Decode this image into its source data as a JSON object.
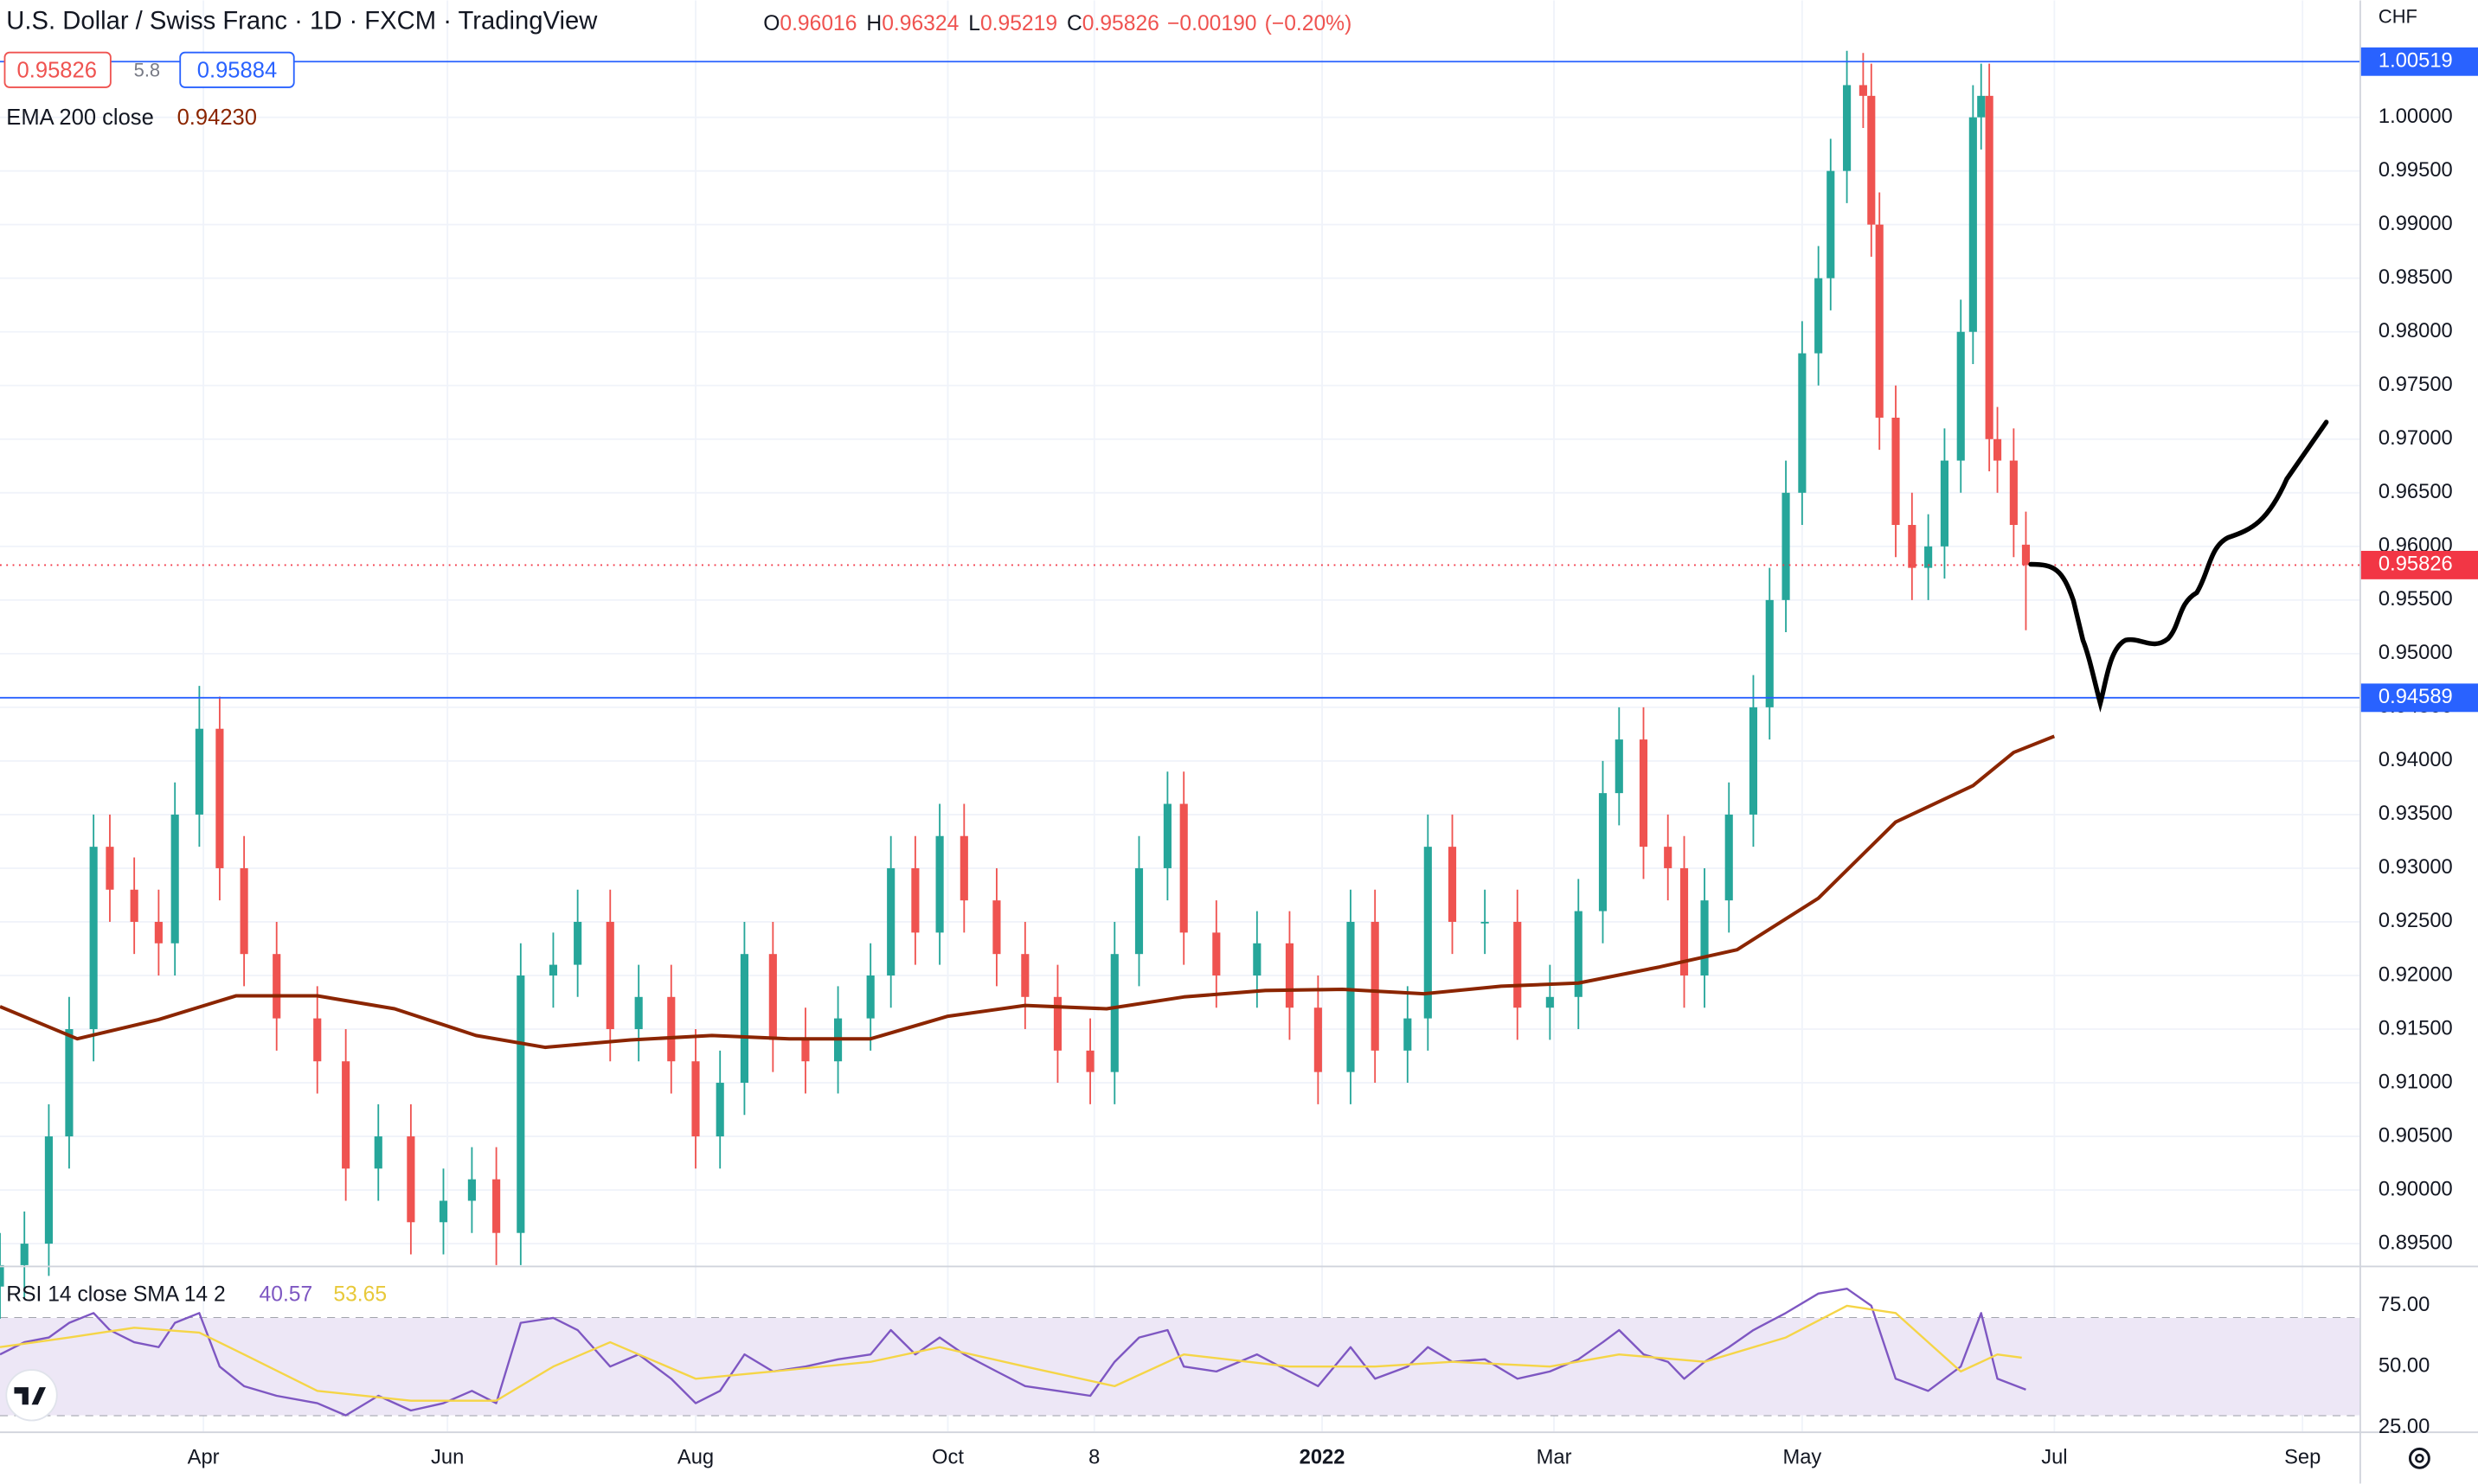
{
  "chart_data": [
    {
      "type": "candlestick",
      "title": "U.S. Dollar / Swiss Franc · 1D · FXCM · TradingView",
      "ohlc_legend": [
        {
          "label": "O",
          "value": 0.96016
        },
        {
          "label": "H",
          "value": 0.96324
        },
        {
          "label": "L",
          "value": 0.95219
        },
        {
          "label": "C",
          "value": 0.95826
        }
      ],
      "change": "−0.00190",
      "change_pct": "(−0.20%)",
      "sell": 0.95826,
      "spread": 5.8,
      "buy": 0.95884,
      "up_color": "#26a69a",
      "down_color": "#ef5350",
      "x": [
        0,
        6,
        12,
        17,
        23,
        27,
        33,
        39,
        43,
        49,
        54,
        60,
        68,
        78,
        85,
        93,
        101,
        109,
        116,
        122,
        128,
        136,
        142,
        150,
        157,
        165,
        171,
        177,
        183,
        190,
        198,
        206,
        214,
        219,
        225,
        231,
        237,
        245,
        252,
        260,
        268,
        274,
        280,
        287,
        291,
        299,
        309,
        317,
        324,
        332,
        338,
        346,
        351,
        357,
        365,
        373,
        381,
        388,
        394,
        398,
        404,
        410,
        414,
        419,
        425,
        431,
        435,
        439,
        443,
        447,
        450,
        454,
        458,
        460,
        462,
        466,
        470,
        474,
        478,
        482,
        485,
        487,
        489,
        491,
        495,
        498
      ],
      "open": [
        0.891,
        0.893,
        0.895,
        0.905,
        0.915,
        0.932,
        0.928,
        0.925,
        0.923,
        0.935,
        0.943,
        0.93,
        0.922,
        0.916,
        0.912,
        0.902,
        0.905,
        0.897,
        0.899,
        0.901,
        0.896,
        0.92,
        0.921,
        0.925,
        0.915,
        0.918,
        0.912,
        0.905,
        0.91,
        0.922,
        0.914,
        0.912,
        0.916,
        0.92,
        0.93,
        0.924,
        0.933,
        0.927,
        0.922,
        0.918,
        0.913,
        0.911,
        0.922,
        0.93,
        0.936,
        0.924,
        0.92,
        0.923,
        0.917,
        0.911,
        0.925,
        0.913,
        0.916,
        0.932,
        0.925,
        0.925,
        0.917,
        0.918,
        0.926,
        0.937,
        0.942,
        0.932,
        0.93,
        0.92,
        0.927,
        0.935,
        0.945,
        0.955,
        0.965,
        0.978,
        0.985,
        0.995,
        1.003,
        1.002,
        0.99,
        0.972,
        0.962,
        0.958,
        0.96,
        0.968,
        0.98,
        1.0,
        1.002,
        0.97,
        0.968,
        0.96016
      ],
      "high": [
        0.896,
        0.898,
        0.908,
        0.918,
        0.935,
        0.935,
        0.931,
        0.928,
        0.938,
        0.947,
        0.946,
        0.933,
        0.925,
        0.919,
        0.915,
        0.908,
        0.908,
        0.902,
        0.904,
        0.904,
        0.923,
        0.924,
        0.928,
        0.928,
        0.921,
        0.921,
        0.915,
        0.913,
        0.925,
        0.925,
        0.917,
        0.919,
        0.923,
        0.933,
        0.933,
        0.936,
        0.936,
        0.93,
        0.925,
        0.921,
        0.916,
        0.925,
        0.933,
        0.939,
        0.939,
        0.927,
        0.926,
        0.926,
        0.92,
        0.928,
        0.928,
        0.919,
        0.935,
        0.935,
        0.928,
        0.928,
        0.921,
        0.929,
        0.94,
        0.945,
        0.945,
        0.935,
        0.933,
        0.93,
        0.938,
        0.948,
        0.958,
        0.968,
        0.981,
        0.988,
        0.998,
        1.0062,
        1.006,
        1.005,
        0.993,
        0.975,
        0.965,
        0.963,
        0.971,
        0.983,
        1.003,
        1.005,
        1.005,
        0.973,
        0.971,
        0.96324
      ],
      "low": [
        0.888,
        0.89,
        0.892,
        0.902,
        0.912,
        0.925,
        0.922,
        0.92,
        0.92,
        0.932,
        0.927,
        0.919,
        0.913,
        0.909,
        0.899,
        0.899,
        0.894,
        0.894,
        0.896,
        0.893,
        0.893,
        0.917,
        0.918,
        0.912,
        0.912,
        0.909,
        0.902,
        0.902,
        0.907,
        0.911,
        0.909,
        0.909,
        0.913,
        0.917,
        0.921,
        0.921,
        0.924,
        0.919,
        0.915,
        0.91,
        0.908,
        0.908,
        0.919,
        0.927,
        0.921,
        0.917,
        0.917,
        0.914,
        0.908,
        0.908,
        0.91,
        0.91,
        0.913,
        0.922,
        0.922,
        0.914,
        0.914,
        0.915,
        0.923,
        0.934,
        0.929,
        0.927,
        0.917,
        0.917,
        0.924,
        0.932,
        0.942,
        0.952,
        0.962,
        0.975,
        0.982,
        0.992,
        0.999,
        0.987,
        0.969,
        0.959,
        0.955,
        0.955,
        0.957,
        0.965,
        0.977,
        0.997,
        0.967,
        0.965,
        0.959,
        0.95219
      ],
      "close": [
        0.893,
        0.895,
        0.905,
        0.915,
        0.932,
        0.928,
        0.925,
        0.923,
        0.935,
        0.943,
        0.93,
        0.922,
        0.916,
        0.912,
        0.902,
        0.905,
        0.897,
        0.899,
        0.901,
        0.896,
        0.92,
        0.921,
        0.925,
        0.915,
        0.918,
        0.912,
        0.905,
        0.91,
        0.922,
        0.914,
        0.912,
        0.916,
        0.92,
        0.93,
        0.924,
        0.933,
        0.927,
        0.922,
        0.918,
        0.913,
        0.911,
        0.922,
        0.93,
        0.936,
        0.924,
        0.92,
        0.923,
        0.917,
        0.911,
        0.925,
        0.913,
        0.916,
        0.932,
        0.925,
        0.925,
        0.917,
        0.918,
        0.926,
        0.937,
        0.942,
        0.932,
        0.93,
        0.92,
        0.927,
        0.935,
        0.945,
        0.955,
        0.965,
        0.978,
        0.985,
        0.995,
        1.003,
        1.002,
        0.99,
        0.972,
        0.962,
        0.958,
        0.96,
        0.968,
        0.98,
        1.0,
        1.002,
        0.97,
        0.968,
        0.962,
        0.95826
      ],
      "xlim": [
        0,
        580
      ],
      "xticks": [
        {
          "value": 50,
          "label": "Apr"
        },
        {
          "value": 110,
          "label": "Jun"
        },
        {
          "value": 171,
          "label": "Aug"
        },
        {
          "value": 233,
          "label": "Oct"
        },
        {
          "value": 269,
          "label": "8"
        },
        {
          "value": 325,
          "label": "2022"
        },
        {
          "value": 382,
          "label": "Mar"
        },
        {
          "value": 443,
          "label": "May"
        },
        {
          "value": 505,
          "label": "Jul"
        },
        {
          "value": 566,
          "label": "Sep"
        }
      ],
      "ylim": [
        0.8931,
        1.0109
      ],
      "yticks": [
        {
          "value": 0.895,
          "label": "0.89500"
        },
        {
          "value": 0.9,
          "label": "0.90000"
        },
        {
          "value": 0.905,
          "label": "0.90500"
        },
        {
          "value": 0.91,
          "label": "0.91000"
        },
        {
          "value": 0.915,
          "label": "0.91500"
        },
        {
          "value": 0.92,
          "label": "0.92000"
        },
        {
          "value": 0.925,
          "label": "0.92500"
        },
        {
          "value": 0.93,
          "label": "0.93000"
        },
        {
          "value": 0.935,
          "label": "0.93500"
        },
        {
          "value": 0.94,
          "label": "0.94000"
        },
        {
          "value": 0.945,
          "label": "0.94500"
        },
        {
          "value": 0.95,
          "label": "0.95000"
        },
        {
          "value": 0.955,
          "label": "0.95500"
        },
        {
          "value": 0.96,
          "label": "0.96000"
        },
        {
          "value": 0.965,
          "label": "0.96500"
        },
        {
          "value": 0.97,
          "label": "0.97000"
        },
        {
          "value": 0.975,
          "label": "0.97500"
        },
        {
          "value": 0.98,
          "label": "0.98000"
        },
        {
          "value": 0.985,
          "label": "0.98500"
        },
        {
          "value": 0.99,
          "label": "0.99000"
        },
        {
          "value": 0.995,
          "label": "0.99500"
        },
        {
          "value": 1.0,
          "label": "1.00000"
        }
      ],
      "y_axis_label": "CHF",
      "grid": true,
      "series": [
        {
          "name": "EMA 200 close",
          "value_label": "0.94230",
          "color": "#8b2500",
          "x": [
            0,
            19,
            39,
            58,
            78,
            97,
            117,
            134,
            155,
            175,
            194,
            214,
            233,
            252,
            272,
            291,
            311,
            330,
            350,
            369,
            388,
            408,
            427,
            447,
            466,
            485,
            495,
            505
          ],
          "values": [
            0.9171,
            0.9141,
            0.9159,
            0.9181,
            0.9181,
            0.9169,
            0.9144,
            0.9133,
            0.914,
            0.9144,
            0.9141,
            0.9141,
            0.9162,
            0.9172,
            0.9169,
            0.918,
            0.9186,
            0.9187,
            0.9183,
            0.919,
            0.9193,
            0.9208,
            0.9224,
            0.9272,
            0.9343,
            0.9377,
            0.9408,
            0.9423
          ]
        }
      ],
      "price_lines": [
        {
          "value": 1.00519,
          "color": "#2962ff"
        },
        {
          "value": 0.94589,
          "color": "#2962ff"
        },
        {
          "value": 0.95826,
          "color": "#f23645",
          "style": "dotted"
        }
      ]
    },
    {
      "type": "line",
      "title": "RSI 14 close SMA 14 2",
      "ylim": [
        24,
        90.2
      ],
      "yticks": [
        {
          "value": 75,
          "label": "75.00"
        },
        {
          "value": 50,
          "label": "50.00"
        },
        {
          "value": 25,
          "label": "25.00"
        }
      ],
      "band": [
        30,
        70
      ],
      "band_lines": [
        70,
        50,
        30
      ],
      "band_color": "#ede7f6",
      "series": [
        {
          "color": "#7e57c2",
          "x": [
            0,
            6,
            12,
            17,
            23,
            27,
            33,
            39,
            43,
            49,
            54,
            60,
            68,
            78,
            85,
            93,
            101,
            109,
            116,
            122,
            128,
            136,
            142,
            150,
            157,
            165,
            171,
            177,
            183,
            190,
            198,
            206,
            214,
            219,
            225,
            231,
            237,
            245,
            252,
            260,
            268,
            274,
            280,
            287,
            291,
            299,
            309,
            317,
            324,
            332,
            338,
            346,
            351,
            357,
            365,
            373,
            381,
            388,
            394,
            398,
            404,
            410,
            414,
            419,
            425,
            431,
            439,
            447,
            454,
            460,
            466,
            474,
            482,
            487,
            491,
            498
          ],
          "values": [
            55,
            60,
            62,
            68,
            72,
            65,
            60,
            58,
            68,
            72,
            50,
            42,
            38,
            35,
            30,
            38,
            32,
            35,
            40,
            35,
            68,
            70,
            65,
            50,
            55,
            45,
            35,
            40,
            55,
            48,
            50,
            53,
            55,
            65,
            55,
            62,
            55,
            48,
            42,
            40,
            38,
            52,
            62,
            65,
            50,
            48,
            55,
            48,
            42,
            58,
            45,
            50,
            58,
            52,
            53,
            45,
            48,
            53,
            60,
            65,
            55,
            52,
            45,
            52,
            58,
            65,
            72,
            80,
            82,
            75,
            45,
            40,
            50,
            72,
            45,
            40.57
          ]
        },
        {
          "color": "#f5d547",
          "x": [
            0,
            17,
            33,
            49,
            60,
            78,
            101,
            122,
            136,
            150,
            171,
            190,
            214,
            231,
            252,
            274,
            291,
            317,
            338,
            357,
            381,
            398,
            419,
            439,
            454,
            466,
            482,
            491,
            497
          ],
          "values": [
            58,
            62,
            66,
            64,
            55,
            40,
            36,
            36,
            50,
            60,
            45,
            48,
            52,
            58,
            50,
            42,
            55,
            50,
            50,
            52,
            50,
            55,
            52,
            62,
            75,
            72,
            48,
            55,
            53.65
          ]
        }
      ]
    }
  ]
}
